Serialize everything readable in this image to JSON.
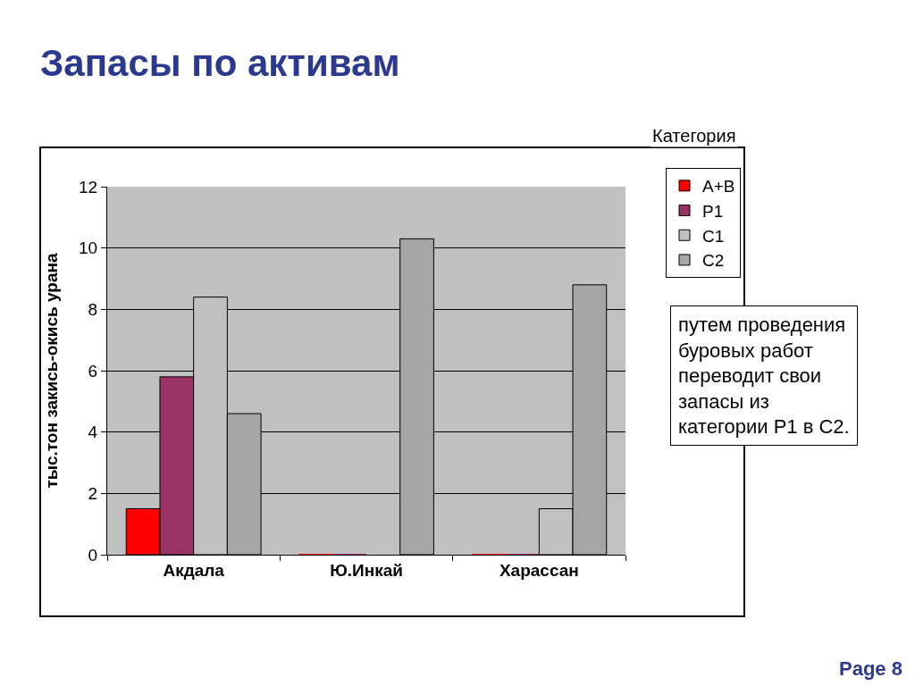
{
  "chart_data": {
    "type": "bar",
    "title": "Запасы по активам",
    "ylabel": "тыс.тон закись-окись урана",
    "categories": [
      "Акдала",
      "Ю.Инкай",
      "Харассан"
    ],
    "series": [
      {
        "name": "A+B",
        "color": "#ff0000",
        "values": [
          1.5,
          0,
          0
        ]
      },
      {
        "name": "P1",
        "color": "#993366",
        "values": [
          5.8,
          0,
          0
        ]
      },
      {
        "name": "C1",
        "color": "#c0c0c0",
        "values": [
          8.4,
          0,
          1.5
        ]
      },
      {
        "name": "C2",
        "color": "#a6a6a6",
        "values": [
          4.6,
          10.3,
          8.8
        ]
      }
    ],
    "ylim": [
      0,
      12
    ],
    "yticks": [
      0,
      2,
      4,
      6,
      8,
      10,
      12
    ],
    "grid": "y",
    "legend": "top right",
    "annotations": [
      "Категория",
      "путем проведения буровых работ переводит свои запасы из категории P1 в C2.",
      "Page 8"
    ]
  }
}
